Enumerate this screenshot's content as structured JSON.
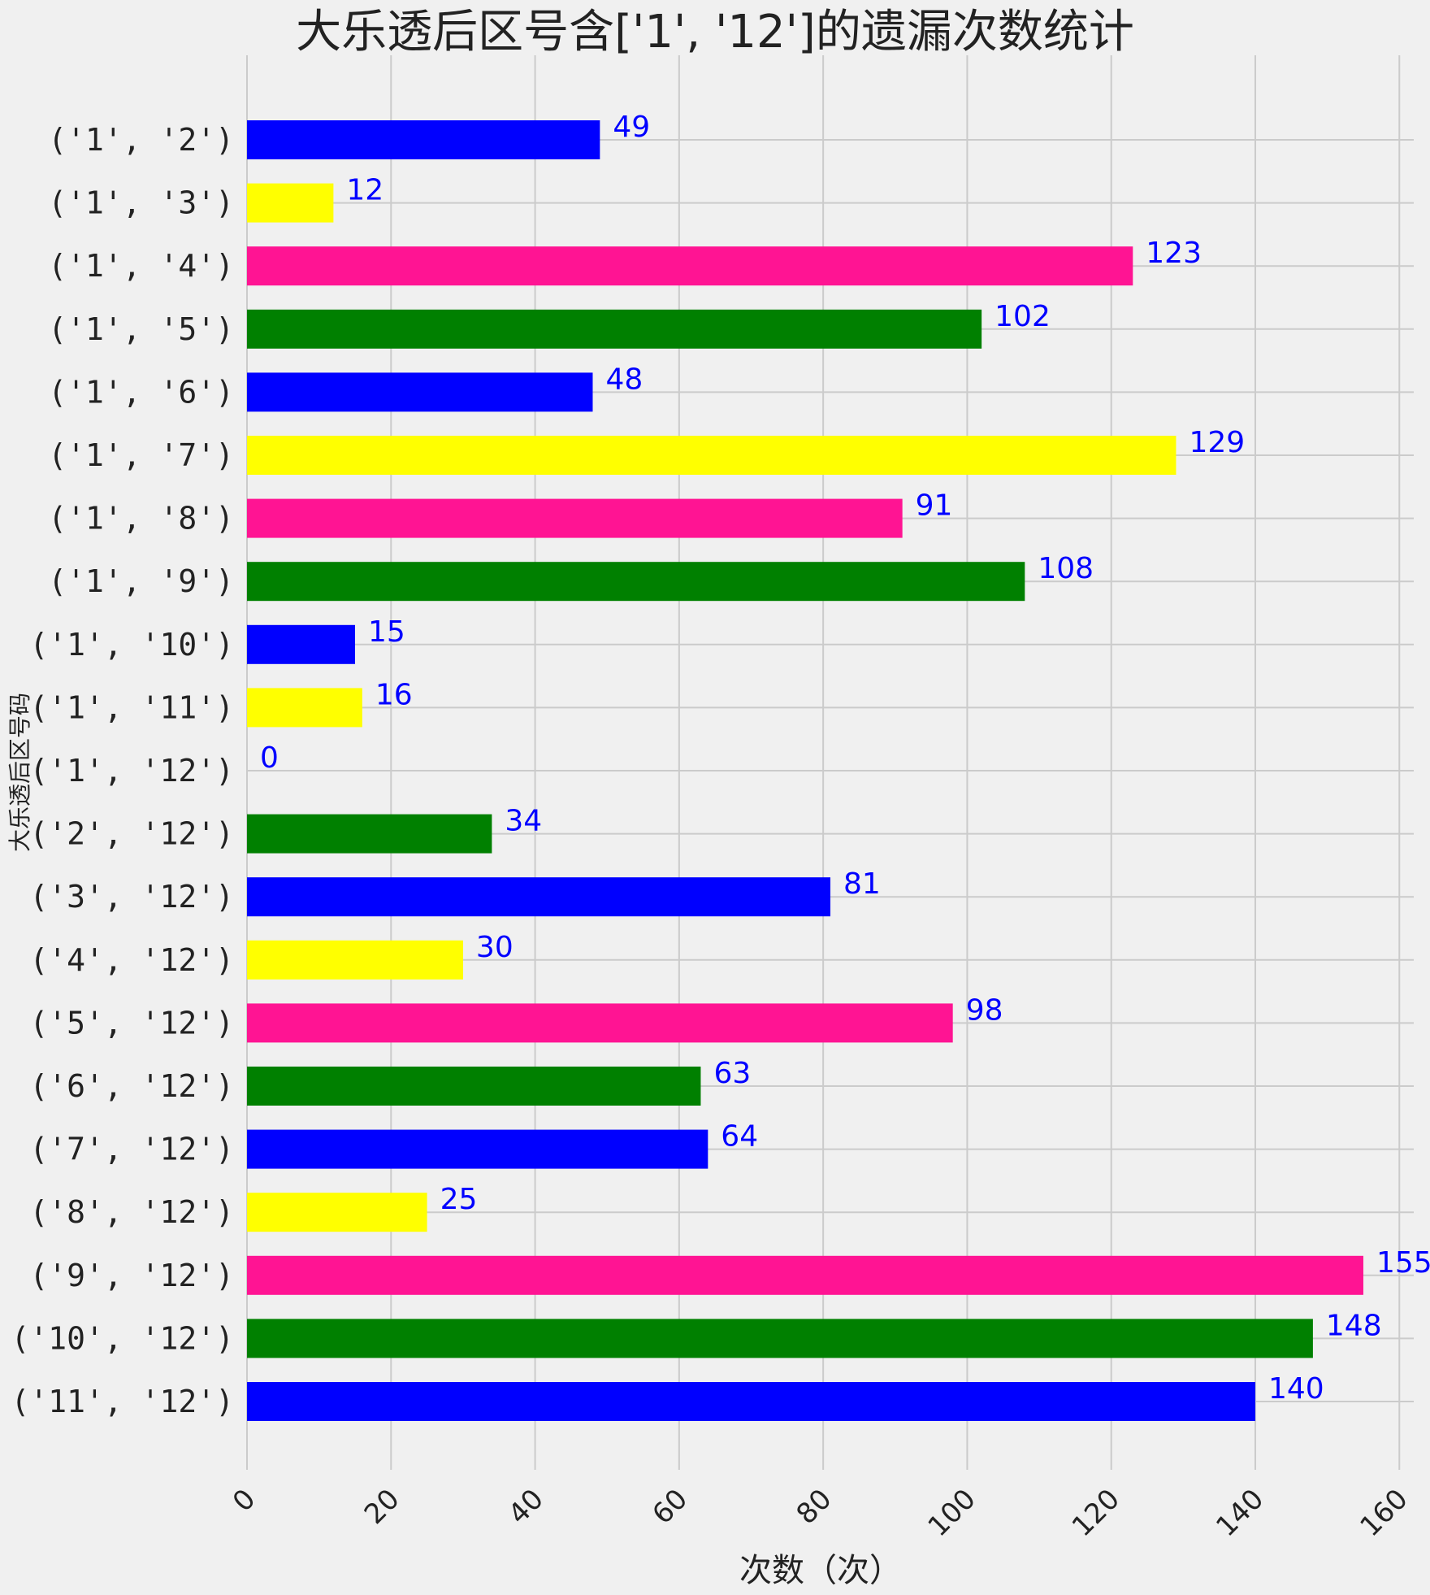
{
  "chart_data": {
    "type": "bar",
    "orientation": "horizontal",
    "title": "大乐透后区号含['1', '12']的遗漏次数统计",
    "xlabel": "次数（次）",
    "ylabel": "大乐透后区号码",
    "categories": [
      "('1', '2')",
      "('1', '3')",
      "('1', '4')",
      "('1', '5')",
      "('1', '6')",
      "('1', '7')",
      "('1', '8')",
      "('1', '9')",
      "('1', '10')",
      "('1', '11')",
      "('1', '12')",
      "('2', '12')",
      "('3', '12')",
      "('4', '12')",
      "('5', '12')",
      "('6', '12')",
      "('7', '12')",
      "('8', '12')",
      "('9', '12')",
      "('10', '12')",
      "('11', '12')"
    ],
    "values": [
      49,
      12,
      123,
      102,
      48,
      129,
      91,
      108,
      15,
      16,
      0,
      34,
      81,
      30,
      98,
      63,
      64,
      25,
      155,
      148,
      140
    ],
    "colors": [
      "#0000ff",
      "#ffff00",
      "#ff1493",
      "#008000"
    ],
    "value_label_color": "#0000ff",
    "xlim": [
      0,
      162
    ],
    "xticks": [
      0,
      20,
      40,
      60,
      80,
      100,
      120,
      140,
      160
    ],
    "grid": true,
    "background": "#f0f0f0"
  }
}
